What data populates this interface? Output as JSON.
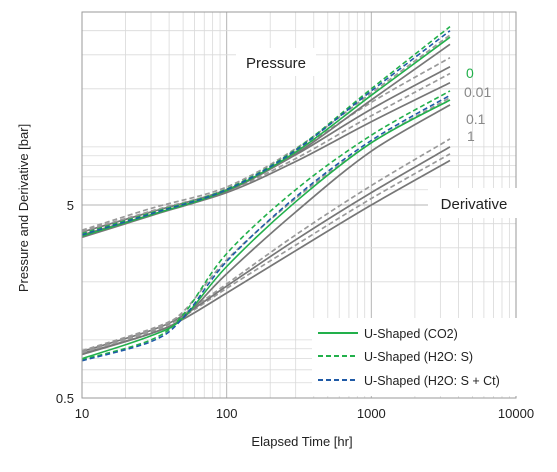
{
  "chart_data": {
    "type": "line",
    "title": "",
    "xlabel": "Elapsed Time [hr]",
    "ylabel": "Pressure and Derivative [bar]",
    "xscale": "log",
    "yscale": "log",
    "xlim": [
      10,
      10000
    ],
    "ylim": [
      0.5,
      50
    ],
    "x_tick_labels": [
      "10",
      "100",
      "1000",
      "10000"
    ],
    "y_tick_labels": [
      "0.5",
      "5"
    ],
    "grid": true,
    "legend_position": "bottom-right",
    "legend": [
      {
        "label": "U-Shaped (CO2)",
        "color": "#22b04b",
        "style": "solid"
      },
      {
        "label": "U-Shaped (H2O: S)",
        "color": "#22b04b",
        "style": "dashed"
      },
      {
        "label": "U-Shaped (H2O: S + Ct)",
        "color": "#1f5aa6",
        "style": "dashed"
      }
    ],
    "annotations": {
      "pressure": "Pressure",
      "derivative": "Derivative",
      "end_labels": [
        "0",
        "0.01",
        "0.1",
        "1"
      ]
    },
    "colors": {
      "co2": "#22b04b",
      "h2o_s": "#22b04b",
      "h2o_s_ct": "#1f5aa6",
      "gray_solid": "#777777",
      "gray_dashed": "#9a9a9a",
      "label_green": "#22b04b",
      "label_gray": "#888888"
    },
    "series": [
      {
        "group": "pressure",
        "color": "gray_solid",
        "dash": false,
        "points": [
          [
            10,
            3.5
          ],
          [
            30,
            4.45
          ],
          [
            100,
            5.8
          ],
          [
            300,
            8.4
          ],
          [
            1000,
            13.5
          ],
          [
            3500,
            21.5
          ]
        ]
      },
      {
        "group": "pressure",
        "color": "gray_dashed",
        "dash": true,
        "points": [
          [
            10,
            3.55
          ],
          [
            30,
            4.55
          ],
          [
            100,
            5.9
          ],
          [
            300,
            8.7
          ],
          [
            1000,
            14.5
          ],
          [
            3500,
            24.0
          ]
        ]
      },
      {
        "group": "pressure",
        "color": "gray_solid",
        "dash": false,
        "points": [
          [
            10,
            3.62
          ],
          [
            30,
            4.6
          ],
          [
            100,
            6.0
          ],
          [
            300,
            9.1
          ],
          [
            1000,
            15.7
          ],
          [
            3500,
            26.0
          ]
        ]
      },
      {
        "group": "pressure",
        "color": "gray_dashed",
        "dash": true,
        "points": [
          [
            10,
            3.65
          ],
          [
            30,
            4.65
          ],
          [
            100,
            6.05
          ],
          [
            300,
            9.5
          ],
          [
            1000,
            17.0
          ],
          [
            3500,
            29.0
          ]
        ]
      },
      {
        "group": "pressure",
        "color": "gray_solid",
        "dash": false,
        "points": [
          [
            10,
            3.4
          ],
          [
            30,
            4.4
          ],
          [
            100,
            5.9
          ],
          [
            300,
            9.2
          ],
          [
            1000,
            17.5
          ],
          [
            3500,
            34.0
          ]
        ]
      },
      {
        "group": "pressure",
        "color": "gray_dashed",
        "dash": true,
        "points": [
          [
            10,
            3.7
          ],
          [
            30,
            4.8
          ],
          [
            100,
            6.2
          ],
          [
            300,
            9.8
          ],
          [
            1000,
            19.0
          ],
          [
            3500,
            38.0
          ]
        ]
      },
      {
        "group": "pressure",
        "color": "co2",
        "dash": false,
        "points": [
          [
            10,
            3.45
          ],
          [
            30,
            4.45
          ],
          [
            100,
            5.95
          ],
          [
            300,
            9.4
          ],
          [
            1000,
            18.5
          ],
          [
            3500,
            37.0
          ]
        ]
      },
      {
        "group": "pressure",
        "color": "h2o_s",
        "dash": true,
        "points": [
          [
            10,
            3.55
          ],
          [
            30,
            4.55
          ],
          [
            100,
            6.05
          ],
          [
            300,
            9.7
          ],
          [
            1000,
            20.0
          ],
          [
            3500,
            42.0
          ]
        ]
      },
      {
        "group": "pressure",
        "color": "h2o_s_ct",
        "dash": true,
        "points": [
          [
            10,
            3.5
          ],
          [
            30,
            4.5
          ],
          [
            100,
            6.0
          ],
          [
            300,
            9.6
          ],
          [
            1000,
            19.5
          ],
          [
            3500,
            40.0
          ]
        ]
      },
      {
        "group": "derivative",
        "color": "gray_solid",
        "dash": false,
        "points": [
          [
            10,
            0.85
          ],
          [
            30,
            1.08
          ],
          [
            50,
            1.28
          ],
          [
            100,
            1.75
          ],
          [
            300,
            2.9
          ],
          [
            1000,
            5.0
          ],
          [
            3500,
            8.5
          ]
        ]
      },
      {
        "group": "derivative",
        "color": "gray_dashed",
        "dash": true,
        "points": [
          [
            10,
            0.86
          ],
          [
            30,
            1.1
          ],
          [
            50,
            1.32
          ],
          [
            100,
            1.85
          ],
          [
            300,
            3.1
          ],
          [
            1000,
            5.4
          ],
          [
            3500,
            9.2
          ]
        ]
      },
      {
        "group": "derivative",
        "color": "gray_solid",
        "dash": false,
        "points": [
          [
            10,
            0.87
          ],
          [
            30,
            1.12
          ],
          [
            50,
            1.34
          ],
          [
            100,
            1.9
          ],
          [
            300,
            3.3
          ],
          [
            1000,
            5.8
          ],
          [
            3500,
            10.0
          ]
        ]
      },
      {
        "group": "derivative",
        "color": "gray_dashed",
        "dash": true,
        "points": [
          [
            10,
            0.88
          ],
          [
            30,
            1.14
          ],
          [
            50,
            1.36
          ],
          [
            100,
            1.95
          ],
          [
            300,
            3.5
          ],
          [
            1000,
            6.3
          ],
          [
            3500,
            11.0
          ]
        ]
      },
      {
        "group": "derivative",
        "color": "gray_solid",
        "dash": false,
        "points": [
          [
            10,
            0.84
          ],
          [
            30,
            1.08
          ],
          [
            50,
            1.3
          ],
          [
            100,
            2.2
          ],
          [
            300,
            4.6
          ],
          [
            1000,
            9.5
          ],
          [
            3500,
            16.5
          ]
        ]
      },
      {
        "group": "derivative",
        "color": "gray_dashed",
        "dash": true,
        "points": [
          [
            10,
            0.86
          ],
          [
            30,
            1.12
          ],
          [
            50,
            1.4
          ],
          [
            100,
            2.6
          ],
          [
            300,
            5.4
          ],
          [
            1000,
            10.5
          ],
          [
            3500,
            18.0
          ]
        ]
      },
      {
        "group": "derivative",
        "color": "co2",
        "dash": false,
        "points": [
          [
            10,
            0.8
          ],
          [
            30,
            1.05
          ],
          [
            50,
            1.3
          ],
          [
            100,
            2.4
          ],
          [
            300,
            5.2
          ],
          [
            1000,
            10.5
          ],
          [
            3500,
            17.5
          ]
        ]
      },
      {
        "group": "derivative",
        "color": "h2o_s",
        "dash": true,
        "points": [
          [
            10,
            0.79
          ],
          [
            30,
            1.0
          ],
          [
            50,
            1.35
          ],
          [
            100,
            2.8
          ],
          [
            300,
            6.0
          ],
          [
            1000,
            11.5
          ],
          [
            3500,
            19.5
          ]
        ]
      },
      {
        "group": "derivative",
        "color": "h2o_s_ct",
        "dash": true,
        "points": [
          [
            10,
            0.78
          ],
          [
            30,
            0.98
          ],
          [
            50,
            1.3
          ],
          [
            100,
            2.55
          ],
          [
            300,
            5.5
          ],
          [
            1000,
            10.8
          ],
          [
            3500,
            18.5
          ]
        ]
      }
    ]
  }
}
